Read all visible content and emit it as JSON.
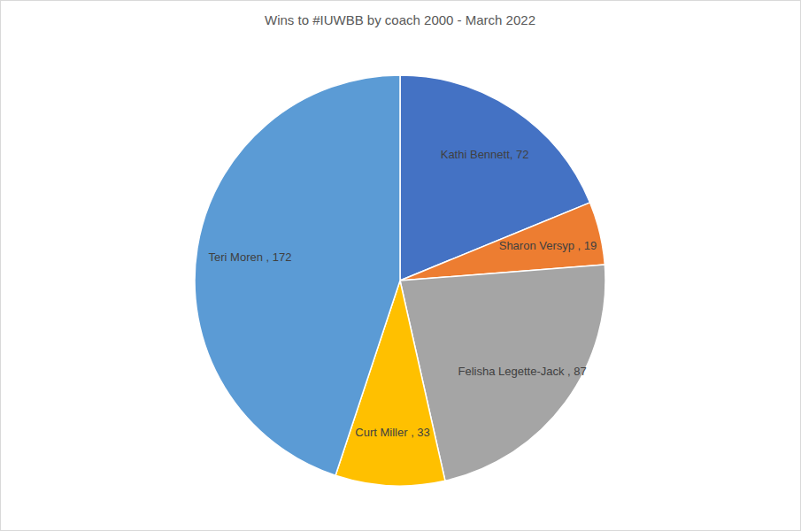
{
  "chart_data": {
    "type": "pie",
    "title": "Wins to #IUWBB by coach 2000 - March 2022",
    "categories": [
      "Kathi Bennett",
      "Sharon Versyp ",
      "Felisha Legette-Jack ",
      "Curt Miller ",
      "Teri Moren "
    ],
    "values": [
      72,
      19,
      87,
      33,
      172
    ],
    "value_labels": [
      ", 72",
      ", 19",
      ", 87",
      ", 33",
      ", 172"
    ],
    "colors": [
      "#4472c4",
      "#ed7d31",
      "#a5a5a5",
      "#ffc000",
      "#5b9bd5"
    ],
    "data_labels": true
  }
}
